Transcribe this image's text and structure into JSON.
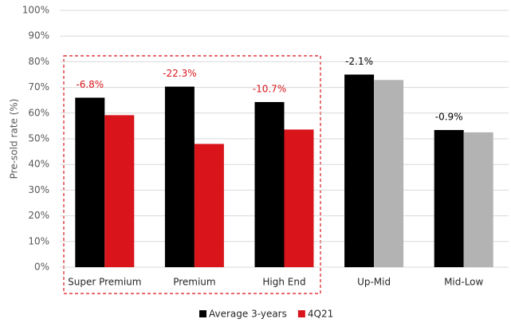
{
  "chart_data": {
    "type": "bar",
    "y_label": "Pre-sold rate (%)",
    "categories": [
      "Super Premium",
      "Premium",
      "High End",
      "Up-Mid",
      "Mid-Low"
    ],
    "series": [
      {
        "name": "Average 3-years",
        "color": "#000000",
        "values": [
          66.0,
          70.3,
          64.3,
          75.0,
          53.4
        ]
      },
      {
        "name": "4Q21",
        "color": "#d9151b",
        "colors": [
          "#d9151b",
          "#d9151b",
          "#d9151b",
          "#b3b3b3",
          "#b3b3b3"
        ],
        "values": [
          59.2,
          48.0,
          53.6,
          72.9,
          52.5
        ]
      }
    ],
    "annotations": [
      {
        "text": "-6.8%",
        "color": "#d9151b"
      },
      {
        "text": "-22.3%",
        "color": "#d9151b"
      },
      {
        "text": "-10.7%",
        "color": "#d9151b"
      },
      {
        "text": "-2.1%",
        "color": "#000000"
      },
      {
        "text": "-0.9%",
        "color": "#000000"
      }
    ],
    "ylim": [
      0,
      100
    ],
    "yticks": [
      {
        "value": 0,
        "label": "0%"
      },
      {
        "value": 10,
        "label": "10%"
      },
      {
        "value": 20,
        "label": "20%"
      },
      {
        "value": 30,
        "label": "30%"
      },
      {
        "value": 40,
        "label": "40%"
      },
      {
        "value": 50,
        "label": "50%"
      },
      {
        "value": 60,
        "label": "60%"
      },
      {
        "value": 70,
        "label": "70%"
      },
      {
        "value": 80,
        "label": "80%"
      },
      {
        "value": 90,
        "label": "90%"
      },
      {
        "value": 100,
        "label": "100%"
      }
    ],
    "grid": true,
    "legend": "bottom"
  }
}
